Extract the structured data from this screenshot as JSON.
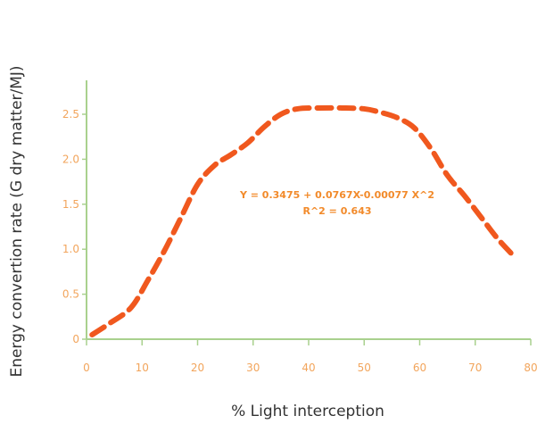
{
  "chart_data": {
    "type": "line",
    "title": "",
    "xlabel": "% Light interception",
    "ylabel": "Energy convertion rate (G dry matter/MJ)",
    "xlim": [
      0,
      80
    ],
    "ylim": [
      0,
      2.5
    ],
    "x_ticks": [
      0,
      10,
      20,
      30,
      40,
      50,
      60,
      70,
      80
    ],
    "y_ticks": [
      0,
      0.5,
      1.0,
      1.5,
      2.0,
      2.5
    ],
    "x_tick_labels": [
      "0",
      "10",
      "20",
      "30",
      "40",
      "50",
      "60",
      "70",
      "80"
    ],
    "y_tick_labels": [
      "0",
      "0.5",
      "1.0",
      "1.5",
      "2.0",
      "2.5"
    ],
    "grid": false,
    "series": [
      {
        "style": "dashed",
        "x": [
          1,
          4,
          8,
          11,
          14,
          17,
          20,
          23,
          26,
          29,
          32,
          35,
          38,
          42,
          46,
          50,
          53,
          56,
          59,
          62,
          65,
          68,
          71,
          74,
          77
        ],
        "y": [
          0.05,
          0.17,
          0.35,
          0.65,
          0.98,
          1.35,
          1.72,
          1.93,
          2.05,
          2.18,
          2.36,
          2.5,
          2.56,
          2.57,
          2.57,
          2.56,
          2.52,
          2.46,
          2.35,
          2.12,
          1.82,
          1.6,
          1.36,
          1.12,
          0.92
        ]
      }
    ],
    "annotations": [
      "Y = 0.3475 + 0.0767X-0.00077 X^2",
      "R^2 = 0.643"
    ],
    "colors": {
      "line": "#f0581e",
      "axis": "#a9d18e",
      "tick_label": "#f2a55c",
      "annotation": "#f28a2a"
    }
  }
}
